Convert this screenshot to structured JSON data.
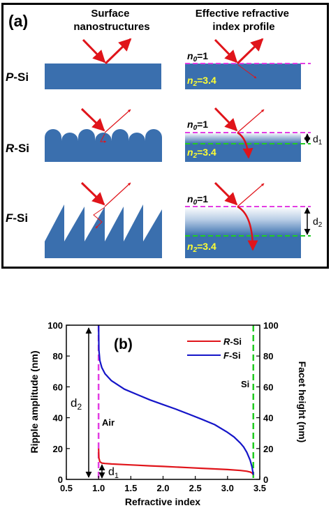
{
  "panel_a": {
    "label": "(a)",
    "col1_header": [
      "Surface",
      "nanostructures"
    ],
    "col2_header": [
      "Effective refractive",
      "index profile"
    ],
    "rows": [
      {
        "name_italic": "P",
        "name_rest": "-Si"
      },
      {
        "name_italic": "R",
        "name_rest": "-Si"
      },
      {
        "name_italic": "F",
        "name_rest": "-Si"
      }
    ],
    "n0": {
      "sym": "n",
      "sub": "0",
      "value": "=1"
    },
    "n2": {
      "sym": "n",
      "sub": "2",
      "value": "=3.4"
    },
    "d1": {
      "sym": "d",
      "sub": "1"
    },
    "d2": {
      "sym": "d",
      "sub": "2"
    },
    "colors": {
      "silicon": "#3a6fae",
      "arrow": "#e0141a",
      "air_line": "#e33de3",
      "si_line": "#22cc22",
      "n2_text": "#ffff33"
    }
  },
  "panel_b": {
    "label": "(b)",
    "annotations": {
      "air": "Air",
      "si": "Si",
      "d2": {
        "sym": "d",
        "sub": "2"
      },
      "d1": {
        "sym": "d",
        "sub": "1"
      }
    },
    "chart_data": {
      "type": "line",
      "xlabel": "Refractive index",
      "ylabel_left": "Ripple amplitude (nm)",
      "ylabel_right": "Facet height (nm)",
      "xlim": [
        0.5,
        3.5
      ],
      "ylim_left": [
        0,
        100
      ],
      "ylim_right": [
        0,
        100
      ],
      "x_ticks": [
        "0.5",
        "1.0",
        "1.5",
        "2.0",
        "2.5",
        "3.0",
        "3.5"
      ],
      "y_ticks_left": [
        "0",
        "20",
        "40",
        "60",
        "80",
        "100"
      ],
      "y_ticks_right": [
        "0",
        "20",
        "40",
        "60",
        "80",
        "100"
      ],
      "legend_position": "top-right",
      "vlines": [
        {
          "x": 1.0,
          "color": "#e33de3"
        },
        {
          "x": 3.4,
          "color": "#22cc22"
        }
      ],
      "series": [
        {
          "name_italic": "R",
          "name_rest": "-Si",
          "color": "#e0141a",
          "x": [
            1.0,
            1.005,
            1.02,
            1.05,
            1.1,
            1.2,
            1.4,
            1.6,
            1.8,
            2.0,
            2.2,
            2.4,
            2.6,
            2.8,
            3.0,
            3.2,
            3.3,
            3.35,
            3.38,
            3.4
          ],
          "y": [
            20,
            14,
            11.5,
            10.6,
            10.3,
            10.0,
            9.6,
            9.2,
            8.8,
            8.4,
            8.0,
            7.6,
            7.2,
            6.8,
            6.4,
            5.8,
            5.3,
            4.8,
            4.2,
            3.0
          ]
        },
        {
          "name_italic": "F",
          "name_rest": "-Si",
          "color": "#1515c8",
          "x": [
            1.0,
            1.005,
            1.02,
            1.05,
            1.1,
            1.2,
            1.4,
            1.6,
            1.8,
            2.0,
            2.2,
            2.4,
            2.6,
            2.8,
            3.0,
            3.1,
            3.2,
            3.25,
            3.3,
            3.35,
            3.38,
            3.4
          ],
          "y": [
            100,
            84,
            77,
            72.5,
            68.5,
            64,
            58.5,
            55,
            51.5,
            48.5,
            45.5,
            42.3,
            39,
            35.5,
            30.5,
            27.5,
            23.5,
            21,
            17.5,
            12.5,
            8,
            3
          ]
        }
      ]
    }
  }
}
